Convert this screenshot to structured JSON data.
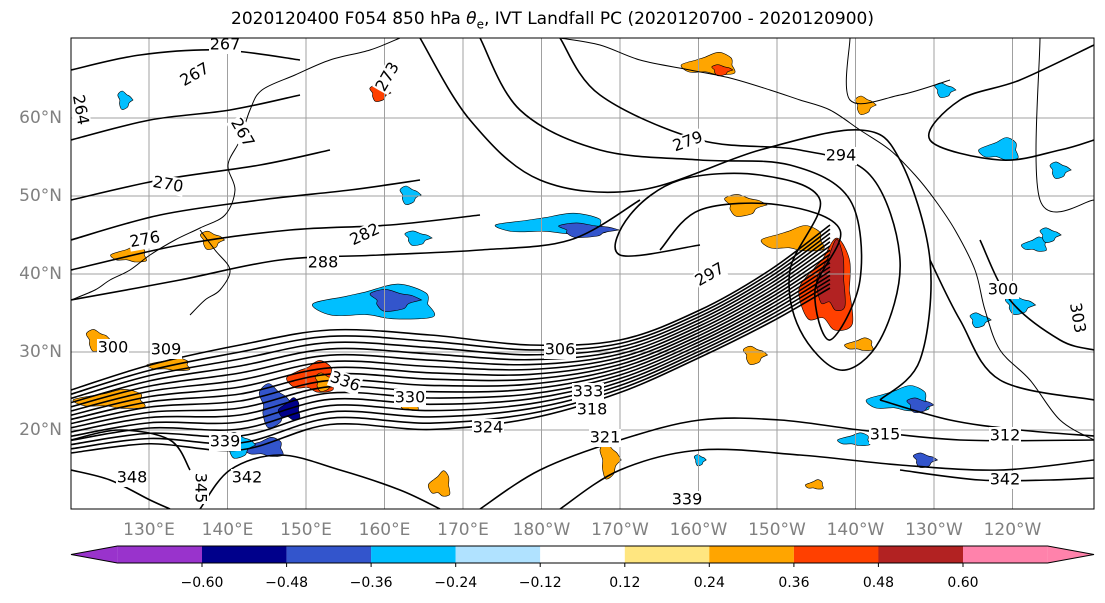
{
  "title": {
    "prefix": "2020120400 F054 850 hPa ",
    "symbol": "θ",
    "subscript": "e",
    "suffix": ", IVT Landfall PC (2020120700 - 2020120900)"
  },
  "map": {
    "latitude_labels": [
      "60°N",
      "50°N",
      "40°N",
      "30°N",
      "20°N"
    ],
    "longitude_labels": [
      "130°E",
      "140°E",
      "150°E",
      "160°E",
      "170°E",
      "180°W",
      "170°W",
      "160°W",
      "150°W",
      "140°W",
      "130°W",
      "120°W"
    ],
    "contour_interval": 3,
    "contour_labels": [
      "264",
      "267",
      "267",
      "267",
      "270",
      "273",
      "276",
      "279",
      "282",
      "288",
      "294",
      "297",
      "300",
      "300",
      "303",
      "306",
      "309",
      "312",
      "315",
      "318",
      "321",
      "324",
      "330",
      "333",
      "336",
      "339",
      "339",
      "342",
      "342",
      "345",
      "348"
    ]
  },
  "colorbar": {
    "ticks": [
      "−0.60",
      "−0.48",
      "−0.36",
      "−0.24",
      "−0.12",
      "0.12",
      "0.24",
      "0.36",
      "0.48",
      "0.60"
    ],
    "colors": [
      "#9933cc",
      "#00008b",
      "#3355cc",
      "#00bfff",
      "#b0e2ff",
      "#ffffff",
      "#ffe680",
      "#ffa500",
      "#ff4000",
      "#b22222",
      "#ff82ab"
    ]
  },
  "colors": {
    "contour": "#000000",
    "coastline": "#000000",
    "grid": "#a0a0a0",
    "axis_label": "#808080"
  }
}
